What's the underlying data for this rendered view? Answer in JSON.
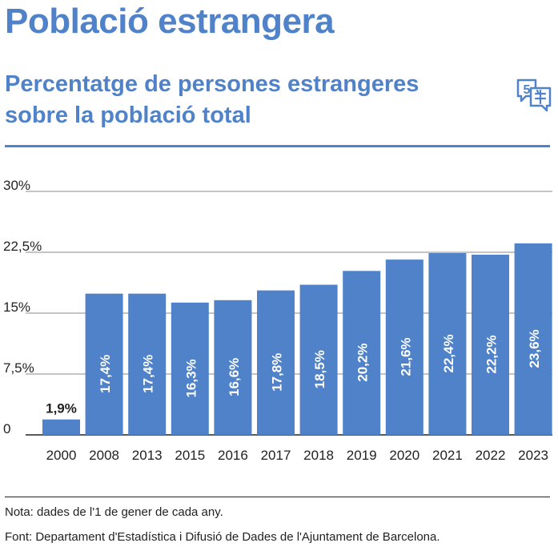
{
  "header": {
    "title": "Població estrangera",
    "subtitle": "Percentatge de persones estrangeres sobre la població total"
  },
  "icons": {
    "language_icon": "speech-bubbles-icon"
  },
  "colors": {
    "accent": "#4f82c8",
    "bar": "#4f82c8",
    "text": "#222222"
  },
  "chart_data": {
    "type": "bar",
    "categories": [
      "2000",
      "2008",
      "2013",
      "2015",
      "2016",
      "2017",
      "2018",
      "2019",
      "2020",
      "2021",
      "2022",
      "2023"
    ],
    "values": [
      1.9,
      17.4,
      17.4,
      16.3,
      16.6,
      17.8,
      18.5,
      20.2,
      21.6,
      22.4,
      22.2,
      23.6
    ],
    "value_labels": [
      "1,9%",
      "17,4%",
      "17,4%",
      "16,3%",
      "16,6%",
      "17,8%",
      "18,5%",
      "20,2%",
      "21,6%",
      "22,4%",
      "22,2%",
      "23,6%"
    ],
    "yticks": [
      0,
      7.5,
      15,
      22.5,
      30
    ],
    "ytick_labels": [
      "0",
      "7,5%",
      "15%",
      "22,5%",
      "30%"
    ],
    "ylim": [
      0,
      30
    ],
    "grid": true
  },
  "footer": {
    "note": "Nota: dades de l'1 de gener de cada any.",
    "source": "Font: Departament d'Estadística i Difusió de Dades de l'Ajuntament de Barcelona."
  }
}
